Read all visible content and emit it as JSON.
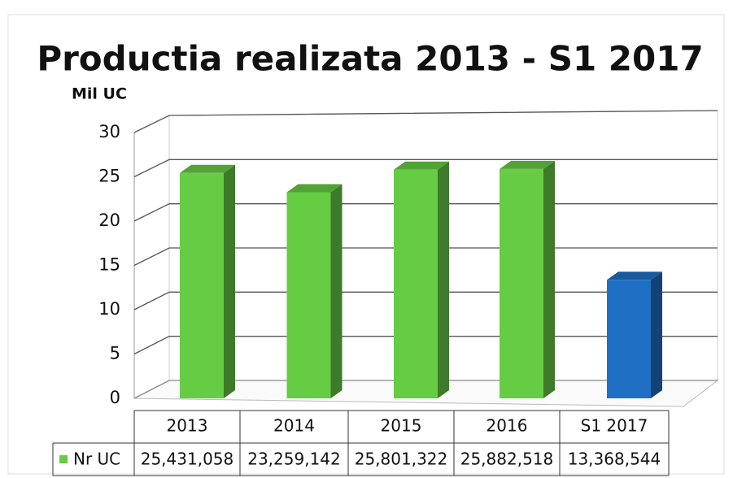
{
  "chart_data": {
    "type": "bar3d",
    "title": "Productia realizata 2013 - S1 2017",
    "y_axis_label": "Mil UC",
    "categories": [
      "2013",
      "2014",
      "2015",
      "2016",
      "S1 2017"
    ],
    "series": [
      {
        "name": "Nr UC",
        "color": "#66cc44",
        "colors": [
          "#66cc44",
          "#66cc44",
          "#66cc44",
          "#66cc44",
          "#1f6fc4"
        ],
        "values": [
          25.431058,
          23.259142,
          25.801322,
          25.882518,
          13.368544
        ],
        "value_labels": [
          "25,431,058",
          "23,259,142",
          "25,801,322",
          "25,882,518",
          "13,368,544"
        ]
      }
    ],
    "ylim": [
      0,
      30
    ],
    "yticks": [
      0,
      5,
      10,
      15,
      20,
      25,
      30
    ],
    "grid": true
  }
}
